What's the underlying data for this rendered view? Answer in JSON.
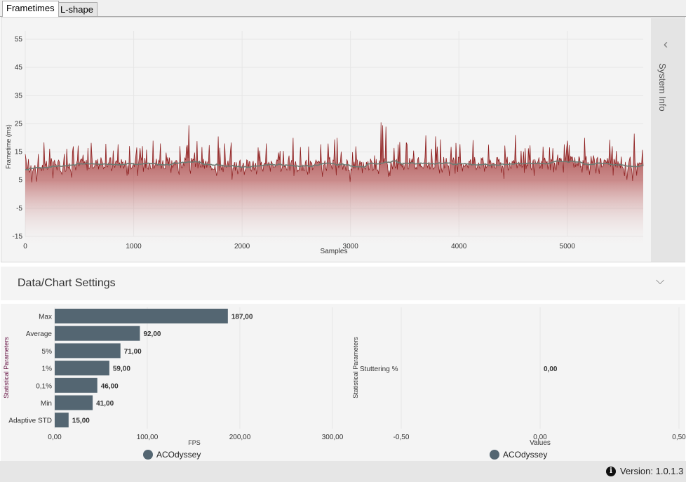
{
  "tabs": [
    {
      "label": "Frametimes",
      "active": true
    },
    {
      "label": "L-shape",
      "active": false
    }
  ],
  "frametime_chart": {
    "type": "area",
    "xlabel": "Samples",
    "ylabel": "Frametime (ms)",
    "xlim": [
      0,
      5700
    ],
    "ylim": [
      -15,
      58
    ],
    "xticks": [
      "0",
      "1000",
      "2000",
      "3000",
      "4000",
      "5000"
    ],
    "yticks": [
      "55",
      "45",
      "35",
      "25",
      "15",
      "5",
      "-5",
      "-15"
    ],
    "grid": true,
    "series_color": "#8b1a1a",
    "moving_avg_color": "#6d7a72",
    "base_frametime_ms": 10.6,
    "spikes": [
      {
        "x": 1510,
        "y": 24.5
      },
      {
        "x": 3280,
        "y": 25.5
      },
      {
        "x": 3300,
        "y": 24.5
      },
      {
        "x": 3330,
        "y": 24
      },
      {
        "x": 5620,
        "y": 21.5
      },
      {
        "x": 5160,
        "y": 20
      },
      {
        "x": 1780,
        "y": 20.5
      },
      {
        "x": 2470,
        "y": 20
      },
      {
        "x": 2880,
        "y": 20
      },
      {
        "x": 1180,
        "y": 19
      },
      {
        "x": 5000,
        "y": 19
      },
      {
        "x": 1250,
        "y": 18
      },
      {
        "x": 1840,
        "y": 18
      },
      {
        "x": 2220,
        "y": 18
      },
      {
        "x": 440,
        "y": 17
      }
    ]
  },
  "system_info": {
    "label": "System Info",
    "icon": "chevron-left-icon"
  },
  "settings": {
    "label": "Data/Chart Settings",
    "icon": "chevron-down-icon"
  },
  "fps_chart": {
    "type": "bar",
    "orientation": "horizontal",
    "ylabel": "Statistical Parameters",
    "xlabel": "FPS",
    "categories": [
      "Max",
      "Average",
      "5%",
      "1%",
      "0,1%",
      "Min",
      "Adaptive STD"
    ],
    "values": [
      187,
      92,
      71,
      59,
      46,
      41,
      15
    ],
    "value_labels": [
      "187,00",
      "92,00",
      "71,00",
      "59,00",
      "46,00",
      "41,00",
      "15,00"
    ],
    "xlim": [
      0,
      300
    ],
    "xticks": [
      0,
      100,
      200,
      300
    ],
    "xtick_labels": [
      "0,00",
      "100,00",
      "200,00",
      "300,00"
    ],
    "bar_color": "#546672",
    "legend": "ACOdyssey",
    "legend_color": "#546672"
  },
  "stutter_chart": {
    "type": "bar",
    "orientation": "horizontal",
    "ylabel": "Statistical Parameters",
    "xlabel": "Values",
    "categories": [
      "Stuttering %"
    ],
    "values": [
      0
    ],
    "value_labels": [
      "0,00"
    ],
    "xlim": [
      -0.5,
      0.5
    ],
    "xticks": [
      -0.5,
      0,
      0.5
    ],
    "xtick_labels": [
      "-0,50",
      "0,00",
      "0,50"
    ],
    "legend": "ACOdyssey",
    "legend_color": "#546672"
  },
  "footer": {
    "info_icon": "i",
    "version_label": "Version:",
    "version": "1.0.1.3"
  }
}
